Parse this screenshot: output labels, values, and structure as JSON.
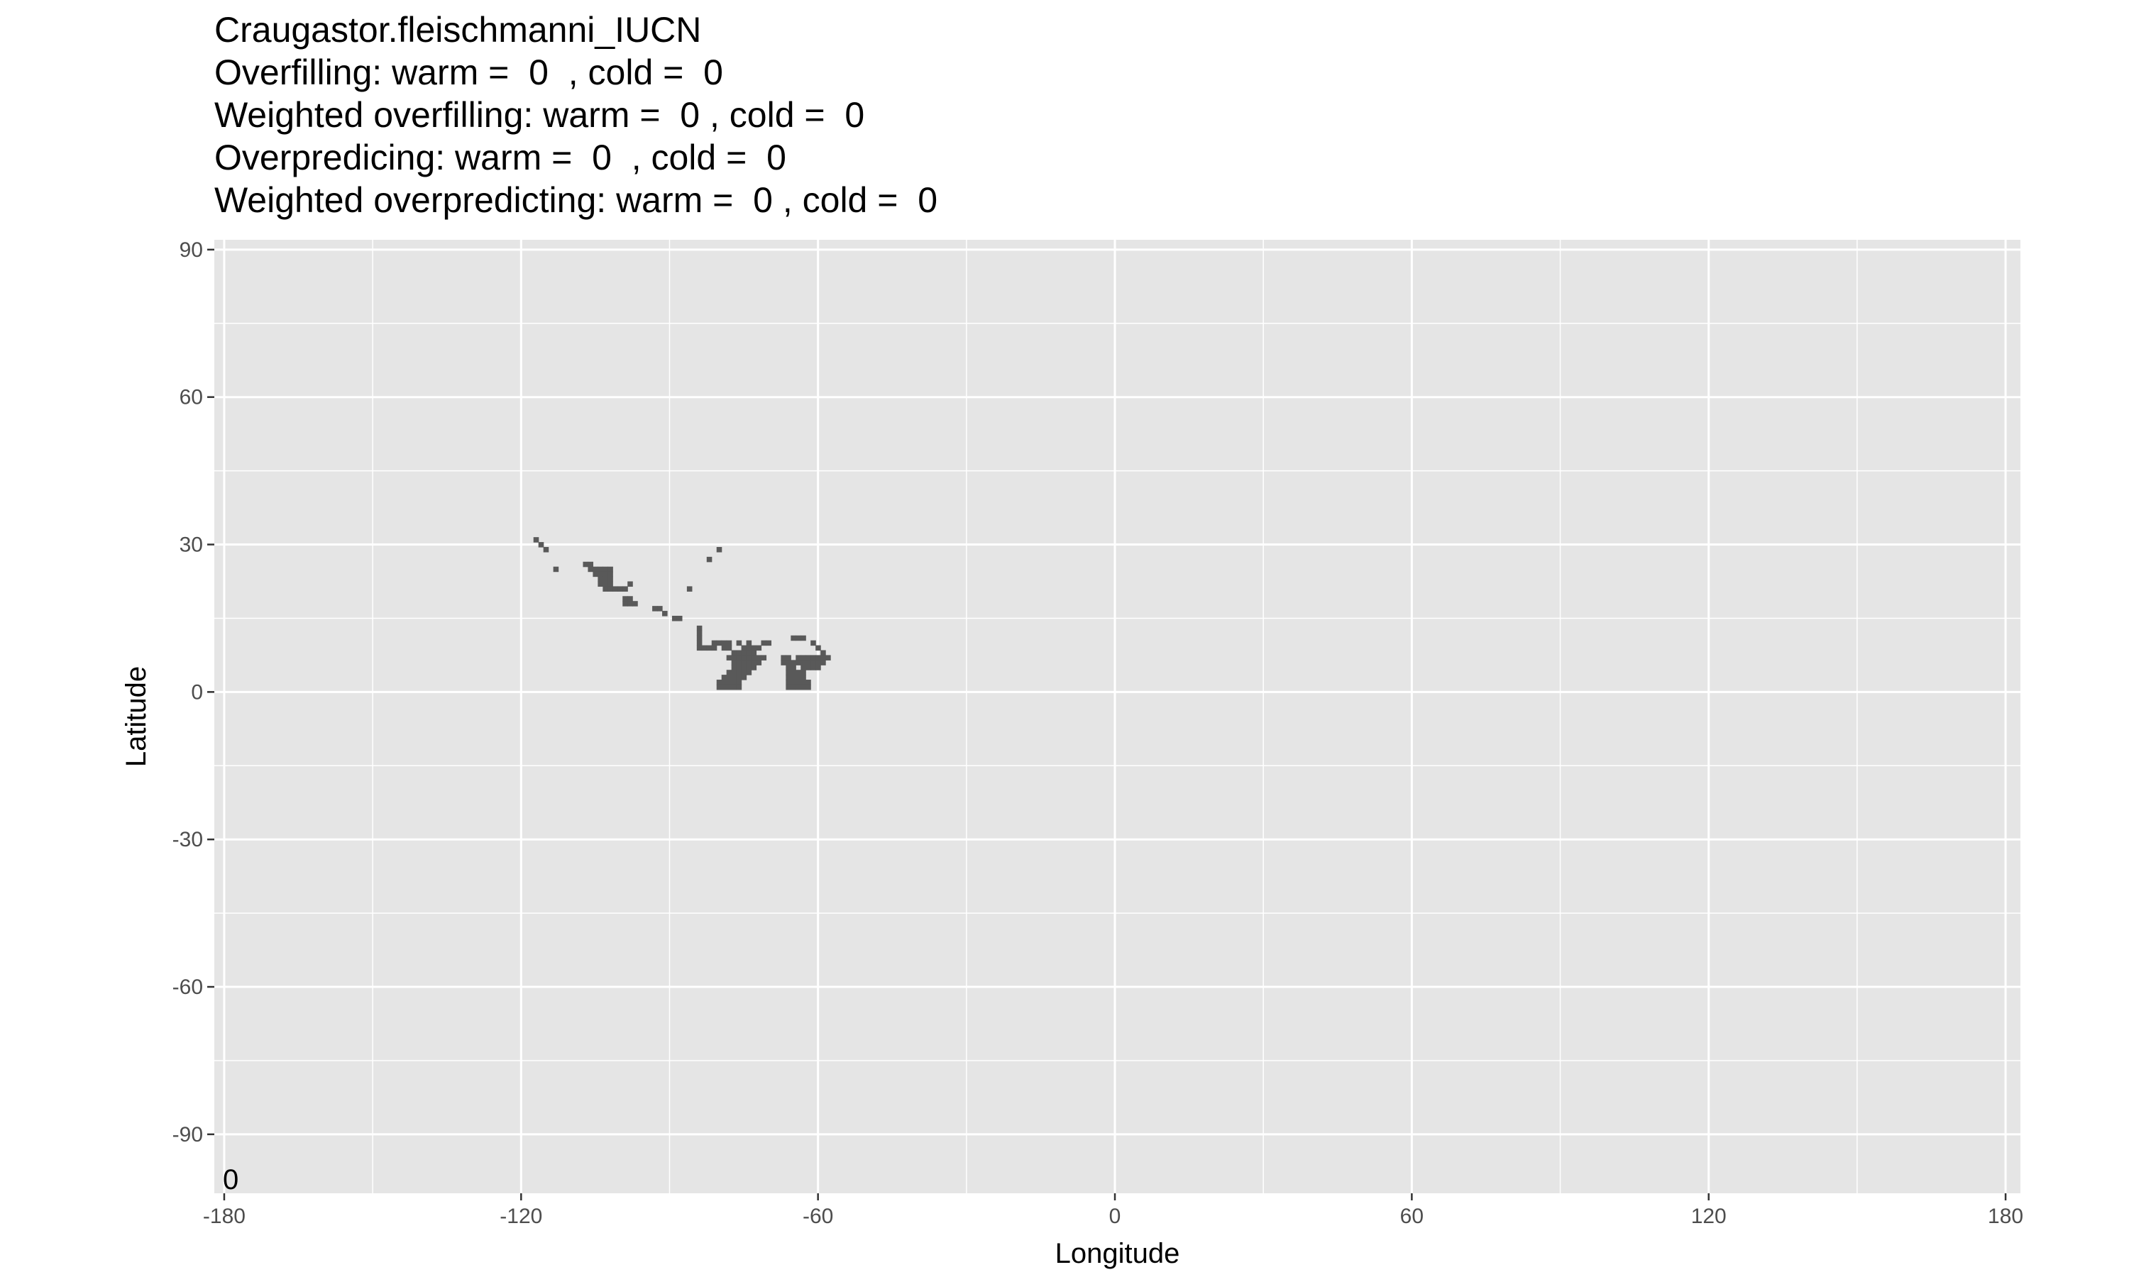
{
  "title_lines": [
    "Craugastor.fleischmanni_IUCN",
    "Overfilling: warm =  0  , cold =  0",
    "Weighted overfilling: warm =  0 , cold =  0",
    "Overpredicing: warm =  0  , cold =  0",
    "Weighted overpredicting: warm =  0 , cold =  0"
  ],
  "chart_data": {
    "type": "heatmap",
    "xlabel": "Longitude",
    "ylabel": "Latitude",
    "xlim": [
      -182,
      183
    ],
    "ylim": [
      -102,
      92
    ],
    "x_ticks": [
      -180,
      -120,
      -60,
      0,
      60,
      120,
      180
    ],
    "x_tick_labels": [
      "-180",
      "-120",
      "-60",
      "0",
      "60",
      "120",
      "180"
    ],
    "y_ticks": [
      -90,
      -60,
      -30,
      0,
      30,
      60,
      90
    ],
    "y_tick_labels": [
      "-90",
      "-60",
      "-30",
      "0",
      "30",
      "60",
      "90"
    ],
    "x_minor": [
      -150,
      -90,
      -30,
      30,
      90,
      150
    ],
    "y_minor": [
      -75,
      -45,
      -15,
      15,
      45,
      75
    ],
    "grid": true,
    "legend": "none",
    "corner_annotation": "0",
    "cell_size_deg": 1,
    "fill_color": "#595959",
    "panel_color": "#e5e5e5",
    "grid_color": "#ffffff",
    "cells": [
      [
        -117,
        31
      ],
      [
        -116,
        30
      ],
      [
        -115,
        29
      ],
      [
        -113,
        25
      ],
      [
        -107,
        26
      ],
      [
        -106,
        26
      ],
      [
        -106,
        25
      ],
      [
        -105,
        25
      ],
      [
        -104,
        25
      ],
      [
        -103,
        25
      ],
      [
        -102,
        25
      ],
      [
        -105,
        24
      ],
      [
        -104,
        24
      ],
      [
        -103,
        24
      ],
      [
        -102,
        24
      ],
      [
        -104,
        23
      ],
      [
        -103,
        23
      ],
      [
        -102,
        23
      ],
      [
        -104,
        22
      ],
      [
        -103,
        22
      ],
      [
        -102,
        22
      ],
      [
        -103,
        21
      ],
      [
        -102,
        21
      ],
      [
        -101,
        21
      ],
      [
        -100,
        21
      ],
      [
        -99,
        21
      ],
      [
        -98,
        22
      ],
      [
        -99,
        19
      ],
      [
        -98,
        19
      ],
      [
        -99,
        18
      ],
      [
        -98,
        18
      ],
      [
        -97,
        18
      ],
      [
        -93,
        17
      ],
      [
        -92,
        17
      ],
      [
        -91,
        16
      ],
      [
        -89,
        15
      ],
      [
        -88,
        15
      ],
      [
        -86,
        21
      ],
      [
        -80,
        29
      ],
      [
        -82,
        27
      ],
      [
        -84,
        13
      ],
      [
        -84,
        12
      ],
      [
        -84,
        11
      ],
      [
        -84,
        10
      ],
      [
        -84,
        9
      ],
      [
        -83,
        9
      ],
      [
        -82,
        9
      ],
      [
        -81,
        10
      ],
      [
        -80,
        10
      ],
      [
        -79,
        10
      ],
      [
        -78,
        10
      ],
      [
        -76,
        10
      ],
      [
        -74,
        10
      ],
      [
        -71,
        10
      ],
      [
        -70,
        10
      ],
      [
        -81,
        9
      ],
      [
        -79,
        9
      ],
      [
        -78,
        9
      ],
      [
        -75,
        9
      ],
      [
        -74,
        9
      ],
      [
        -73,
        9
      ],
      [
        -72,
        9
      ],
      [
        -77,
        8
      ],
      [
        -76,
        8
      ],
      [
        -75,
        8
      ],
      [
        -74,
        8
      ],
      [
        -73,
        8
      ],
      [
        -78,
        7
      ],
      [
        -77,
        7
      ],
      [
        -76,
        7
      ],
      [
        -75,
        7
      ],
      [
        -74,
        7
      ],
      [
        -73,
        7
      ],
      [
        -72,
        7
      ],
      [
        -71,
        7
      ],
      [
        -77,
        6
      ],
      [
        -76,
        6
      ],
      [
        -75,
        6
      ],
      [
        -74,
        6
      ],
      [
        -73,
        6
      ],
      [
        -72,
        6
      ],
      [
        -77,
        5
      ],
      [
        -76,
        5
      ],
      [
        -75,
        5
      ],
      [
        -74,
        5
      ],
      [
        -73,
        5
      ],
      [
        -78,
        4
      ],
      [
        -77,
        4
      ],
      [
        -76,
        4
      ],
      [
        -75,
        4
      ],
      [
        -74,
        4
      ],
      [
        -79,
        3
      ],
      [
        -78,
        3
      ],
      [
        -77,
        3
      ],
      [
        -76,
        3
      ],
      [
        -75,
        3
      ],
      [
        -80,
        2
      ],
      [
        -79,
        2
      ],
      [
        -78,
        2
      ],
      [
        -77,
        2
      ],
      [
        -76,
        2
      ],
      [
        -80,
        1
      ],
      [
        -79,
        1
      ],
      [
        -78,
        1
      ],
      [
        -77,
        1
      ],
      [
        -76,
        1
      ],
      [
        -65,
        11
      ],
      [
        -64,
        11
      ],
      [
        -63,
        11
      ],
      [
        -61,
        10
      ],
      [
        -60,
        9
      ],
      [
        -59,
        8
      ],
      [
        -67,
        7
      ],
      [
        -66,
        7
      ],
      [
        -64,
        7
      ],
      [
        -63,
        7
      ],
      [
        -62,
        7
      ],
      [
        -61,
        7
      ],
      [
        -60,
        7
      ],
      [
        -59,
        7
      ],
      [
        -58,
        7
      ],
      [
        -67,
        6
      ],
      [
        -66,
        6
      ],
      [
        -65,
        6
      ],
      [
        -64,
        6
      ],
      [
        -63,
        6
      ],
      [
        -62,
        6
      ],
      [
        -61,
        6
      ],
      [
        -60,
        6
      ],
      [
        -59,
        6
      ],
      [
        -66,
        5
      ],
      [
        -65,
        5
      ],
      [
        -63,
        5
      ],
      [
        -62,
        5
      ],
      [
        -61,
        5
      ],
      [
        -60,
        5
      ],
      [
        -66,
        4
      ],
      [
        -65,
        4
      ],
      [
        -64,
        4
      ],
      [
        -63,
        4
      ],
      [
        -66,
        3
      ],
      [
        -65,
        3
      ],
      [
        -64,
        3
      ],
      [
        -63,
        3
      ],
      [
        -66,
        2
      ],
      [
        -65,
        2
      ],
      [
        -64,
        2
      ],
      [
        -63,
        2
      ],
      [
        -62,
        2
      ],
      [
        -66,
        1
      ],
      [
        -65,
        1
      ],
      [
        -64,
        1
      ],
      [
        -63,
        1
      ],
      [
        -62,
        1
      ]
    ]
  }
}
